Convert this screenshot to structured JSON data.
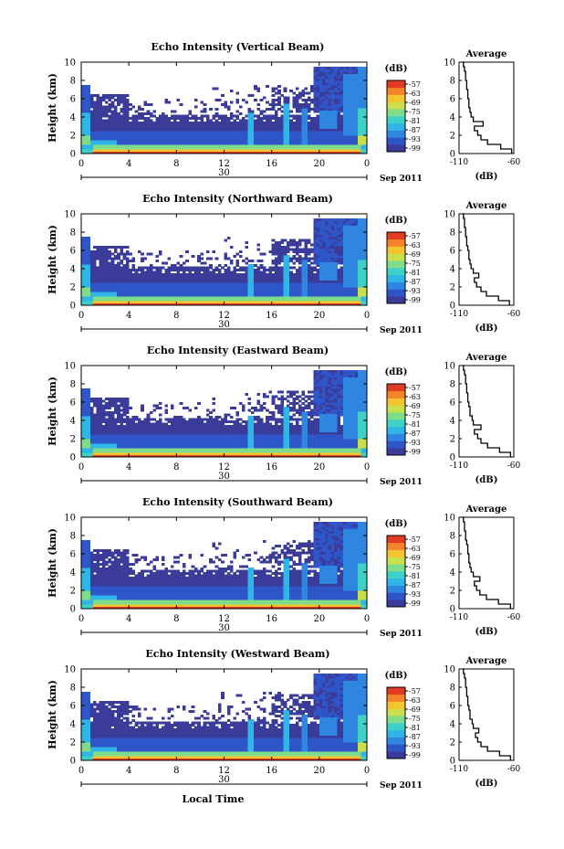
{
  "figure": {
    "xaxis_title": "Local Time",
    "colorbar_unit": "(dB)",
    "colorbar_ticks": [
      "-57",
      "-63",
      "-69",
      "-75",
      "-81",
      "-87",
      "-93",
      "-99"
    ],
    "colormap": [
      "#3b3b9a",
      "#2f56c8",
      "#2f86e0",
      "#2fb6e6",
      "#3fd0c8",
      "#7fdc8a",
      "#c9e04a",
      "#f4c430",
      "#f4842a",
      "#e03c24"
    ],
    "avg_title": "Average",
    "avg_xlabel": "(dB)"
  },
  "chart_data": [
    {
      "type": "heatmap",
      "title": "Echo Intensity (Vertical Beam)",
      "ylabel": "Height (km)",
      "ylim": [
        0,
        10
      ],
      "yticks": [
        "0",
        "2",
        "4",
        "6",
        "8",
        "10"
      ],
      "xlim": [
        0,
        24
      ],
      "xticks": [
        "0",
        "4",
        "8",
        "12",
        "16",
        "20",
        "0"
      ],
      "date_day": "30",
      "date_month": "Sep 2011",
      "clim": [
        -99,
        -57
      ],
      "profile": {
        "title": "Average",
        "xlabel": "(dB)",
        "xlim": [
          -110,
          -60
        ],
        "xticks": [
          "-110",
          "-60"
        ],
        "yticks": [
          "0",
          "2",
          "4",
          "6",
          "8",
          "10"
        ],
        "height": [
          0,
          0.5,
          1,
          1.5,
          2,
          2.5,
          3,
          3.5,
          4,
          4.5,
          5,
          5.5,
          6,
          6.5,
          7,
          7.5,
          8,
          8.5,
          9,
          9.5,
          10
        ],
        "db": [
          -62,
          -72,
          -84,
          -90,
          -93,
          -96,
          -88,
          -97,
          -99,
          -100,
          -101,
          -101,
          -102,
          -102,
          -103,
          -103,
          -104,
          -104,
          -105,
          -106,
          -107
        ]
      }
    },
    {
      "type": "heatmap",
      "title": "Echo Intensity (Northward Beam)",
      "ylabel": "Height (km)",
      "ylim": [
        0,
        10
      ],
      "yticks": [
        "0",
        "2",
        "4",
        "6",
        "8",
        "10"
      ],
      "xlim": [
        0,
        24
      ],
      "xticks": [
        "0",
        "4",
        "8",
        "12",
        "16",
        "20",
        "0"
      ],
      "date_day": "30",
      "date_month": "Sep 2011",
      "clim": [
        -99,
        -57
      ],
      "profile": {
        "title": "Average",
        "xlabel": "(dB)",
        "xlim": [
          -110,
          -60
        ],
        "xticks": [
          "-110",
          "-60"
        ],
        "yticks": [
          "0",
          "2",
          "4",
          "6",
          "8",
          "10"
        ],
        "height": [
          0,
          0.5,
          1,
          1.5,
          2,
          2.5,
          3,
          3.5,
          4,
          4.5,
          5,
          5.5,
          6,
          6.5,
          7,
          7.5,
          8,
          8.5,
          9,
          9.5,
          10
        ],
        "db": [
          -64,
          -74,
          -85,
          -90,
          -94,
          -96,
          -92,
          -97,
          -99,
          -100,
          -101,
          -101,
          -102,
          -103,
          -103,
          -104,
          -104,
          -105,
          -105,
          -106,
          -107
        ]
      }
    },
    {
      "type": "heatmap",
      "title": "Echo Intensity (Eastward Beam)",
      "ylabel": "Height (km)",
      "ylim": [
        0,
        10
      ],
      "yticks": [
        "0",
        "2",
        "4",
        "6",
        "8",
        "10"
      ],
      "xlim": [
        0,
        24
      ],
      "xticks": [
        "0",
        "4",
        "8",
        "12",
        "16",
        "20",
        "0"
      ],
      "date_day": "30",
      "date_month": "Sep 2011",
      "clim": [
        -99,
        -57
      ],
      "profile": {
        "title": "Average",
        "xlabel": "(dB)",
        "xlim": [
          -110,
          -60
        ],
        "xticks": [
          "-110",
          "-60"
        ],
        "yticks": [
          "0",
          "2",
          "4",
          "6",
          "8",
          "10"
        ],
        "height": [
          0,
          0.5,
          1,
          1.5,
          2,
          2.5,
          3,
          3.5,
          4,
          4.5,
          5,
          5.5,
          6,
          6.5,
          7,
          7.5,
          8,
          8.5,
          9,
          9.5,
          10
        ],
        "db": [
          -63,
          -73,
          -84,
          -90,
          -93,
          -96,
          -90,
          -97,
          -98,
          -100,
          -100,
          -101,
          -102,
          -102,
          -103,
          -103,
          -104,
          -104,
          -105,
          -106,
          -107
        ]
      }
    },
    {
      "type": "heatmap",
      "title": "Echo Intensity (Southward Beam)",
      "ylabel": "Height (km)",
      "ylim": [
        0,
        10
      ],
      "yticks": [
        "0",
        "2",
        "4",
        "6",
        "8",
        "10"
      ],
      "xlim": [
        0,
        24
      ],
      "xticks": [
        "0",
        "4",
        "8",
        "12",
        "16",
        "20",
        "0"
      ],
      "date_day": "30",
      "date_month": "Sep 2011",
      "clim": [
        -99,
        -57
      ],
      "profile": {
        "title": "Average",
        "xlabel": "(dB)",
        "xlim": [
          -110,
          -60
        ],
        "xticks": [
          "-110",
          "-60"
        ],
        "yticks": [
          "0",
          "2",
          "4",
          "6",
          "8",
          "10"
        ],
        "height": [
          0,
          0.5,
          1,
          1.5,
          2,
          2.5,
          3,
          3.5,
          4,
          4.5,
          5,
          5.5,
          6,
          6.5,
          7,
          7.5,
          8,
          8.5,
          9,
          9.5,
          10
        ],
        "db": [
          -63,
          -74,
          -85,
          -91,
          -94,
          -96,
          -91,
          -97,
          -99,
          -100,
          -101,
          -101,
          -102,
          -102,
          -103,
          -104,
          -104,
          -105,
          -105,
          -106,
          -107
        ]
      }
    },
    {
      "type": "heatmap",
      "title": "Echo Intensity (Westward Beam)",
      "ylabel": "Height (km)",
      "ylim": [
        0,
        10
      ],
      "yticks": [
        "0",
        "2",
        "4",
        "6",
        "8",
        "10"
      ],
      "xlim": [
        0,
        24
      ],
      "xticks": [
        "0",
        "4",
        "8",
        "12",
        "16",
        "20",
        "0"
      ],
      "date_day": "30",
      "date_month": "Sep 2011",
      "clim": [
        -99,
        -57
      ],
      "profile": {
        "title": "Average",
        "xlabel": "(dB)",
        "xlim": [
          -110,
          -60
        ],
        "xticks": [
          "-110",
          "-60"
        ],
        "yticks": [
          "0",
          "2",
          "4",
          "6",
          "8",
          "10"
        ],
        "height": [
          0,
          0.5,
          1,
          1.5,
          2,
          2.5,
          3,
          3.5,
          4,
          4.5,
          5,
          5.5,
          6,
          6.5,
          7,
          7.5,
          8,
          8.5,
          9,
          9.5,
          10
        ],
        "db": [
          -63,
          -73,
          -84,
          -90,
          -93,
          -95,
          -92,
          -97,
          -98,
          -100,
          -100,
          -101,
          -102,
          -102,
          -103,
          -103,
          -104,
          -104,
          -105,
          -106,
          -107
        ]
      }
    }
  ]
}
